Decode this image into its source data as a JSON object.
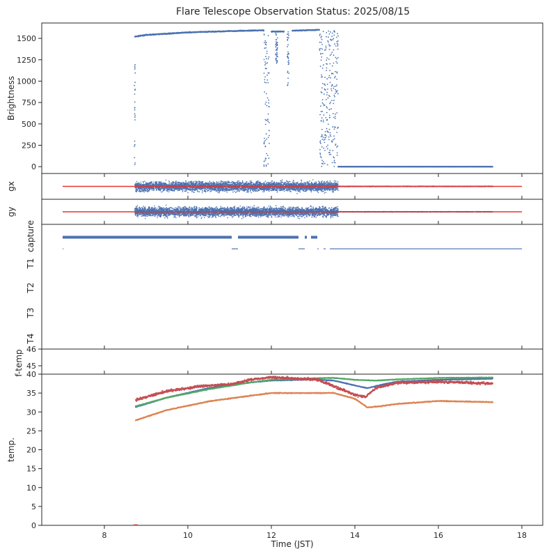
{
  "title": "Flare Telescope Observation Status: 2025/08/15",
  "colors": {
    "blue": "#4c72b0",
    "orange": "#dd8452",
    "green": "#55a868",
    "red": "#c44e52",
    "refline": "#e8322b"
  },
  "chart_data": [
    {
      "id": "brightness",
      "type": "scatter",
      "ylabel": "Brightness",
      "xlim": [
        6.5,
        18.5
      ],
      "ylim": [
        -80,
        1680
      ],
      "yticks": [
        "0",
        "250",
        "500",
        "750",
        "1000",
        "1250",
        "1500"
      ],
      "series": [
        {
          "name": "brightness",
          "color": "blue",
          "segments": [
            {
              "x0": 8.73,
              "x1": 9.0,
              "y0": 1520,
              "y1": 1540
            },
            {
              "x0": 9.0,
              "x1": 10.0,
              "y0": 1540,
              "y1": 1570
            },
            {
              "x0": 10.0,
              "x1": 11.0,
              "y0": 1570,
              "y1": 1585
            },
            {
              "x0": 11.0,
              "x1": 11.82,
              "y0": 1585,
              "y1": 1595
            },
            {
              "x0": 12.0,
              "x1": 12.3,
              "y0": 1580,
              "y1": 1580
            },
            {
              "x0": 12.5,
              "x1": 13.15,
              "y0": 1590,
              "y1": 1600
            },
            {
              "x0": 13.6,
              "x1": 17.3,
              "y0": 0,
              "y1": 0
            }
          ],
          "scatter_regions": [
            {
              "x0": 8.72,
              "x1": 8.74,
              "y0": 0,
              "y1": 1260
            },
            {
              "x0": 11.82,
              "x1": 11.95,
              "y0": 0,
              "y1": 1600
            },
            {
              "x0": 12.1,
              "x1": 12.15,
              "y0": 1200,
              "y1": 1580
            },
            {
              "x0": 12.38,
              "x1": 12.42,
              "y0": 950,
              "y1": 1580
            },
            {
              "x0": 13.15,
              "x1": 13.35,
              "y0": 0,
              "y1": 1600
            },
            {
              "x0": 13.35,
              "x1": 13.6,
              "y0": 0,
              "y1": 1600
            }
          ]
        }
      ]
    },
    {
      "id": "gx",
      "type": "scatter",
      "ylabel": "gx",
      "xlim": [
        6.5,
        18.5
      ],
      "ylim": [
        -1,
        1
      ],
      "series": [
        {
          "name": "gx",
          "color": "blue",
          "noise": [
            {
              "x0": 8.73,
              "x1": 13.6,
              "amp": 0.8
            },
            {
              "x0": 13.6,
              "x1": 17.3,
              "amp": 0.05
            }
          ]
        }
      ],
      "refline": {
        "x0": 7.0,
        "x1": 18.0,
        "y": 0
      }
    },
    {
      "id": "gy",
      "type": "scatter",
      "ylabel": "gy",
      "xlim": [
        6.5,
        18.5
      ],
      "ylim": [
        -1,
        1
      ],
      "series": [
        {
          "name": "gy",
          "color": "blue",
          "noise": [
            {
              "x0": 8.73,
              "x1": 13.6,
              "amp": 0.8
            },
            {
              "x0": 13.6,
              "x1": 17.3,
              "amp": 0.05
            }
          ]
        }
      ],
      "refline": {
        "x0": 7.0,
        "x1": 18.0,
        "y": 0
      }
    },
    {
      "id": "status",
      "type": "scatter",
      "xlim": [
        6.5,
        18.5
      ],
      "ylabels": [
        "capture",
        "T1",
        "T2",
        "T3",
        "T4"
      ],
      "capture_on": [
        [
          7.0,
          11.05
        ],
        [
          11.2,
          12.65
        ],
        [
          12.8,
          12.85
        ],
        [
          12.95,
          13.1
        ]
      ],
      "capture_off": [
        [
          7.0,
          7.02
        ],
        [
          11.05,
          11.2
        ],
        [
          12.65,
          12.8
        ],
        [
          13.1,
          13.13
        ],
        [
          13.25,
          13.3
        ],
        [
          13.4,
          18.0
        ]
      ]
    },
    {
      "id": "ftemp",
      "type": "scatter",
      "ylabel": "f-temp",
      "xlim": [
        6.5,
        18.5
      ],
      "ylim": [
        44.5,
        46
      ],
      "yticks": [
        "45",
        "46"
      ],
      "series": []
    },
    {
      "id": "temp",
      "type": "scatter",
      "ylabel": "temp.",
      "xlabel": "Time (JST)",
      "xlim": [
        6.5,
        18.5
      ],
      "ylim": [
        0,
        40
      ],
      "yticks": [
        "0",
        "5",
        "10",
        "15",
        "20",
        "25",
        "30",
        "35",
        "40"
      ],
      "xticks": [
        "8",
        "10",
        "12",
        "14",
        "16",
        "18"
      ],
      "series": [
        {
          "name": "orange",
          "color": "orange",
          "x": [
            8.75,
            9.5,
            10.5,
            11.5,
            12.0,
            12.5,
            13.5,
            14.0,
            14.3,
            14.6,
            15.0,
            16.0,
            17.3
          ],
          "y": [
            27.8,
            30.5,
            32.8,
            34.3,
            35.0,
            35.0,
            35.0,
            33.5,
            31.2,
            31.5,
            32.1,
            32.9,
            32.6
          ],
          "noise": 0.2
        },
        {
          "name": "blue",
          "color": "blue",
          "x": [
            8.75,
            9.5,
            10.5,
            11.5,
            12.0,
            13.0,
            13.5,
            14.0,
            14.3,
            14.6,
            15.0,
            16.0,
            17.3
          ],
          "y": [
            31.3,
            33.8,
            36.3,
            37.8,
            38.3,
            38.6,
            38.3,
            37.0,
            36.3,
            37.1,
            38.0,
            38.5,
            38.8
          ],
          "noise": 0.15
        },
        {
          "name": "green",
          "color": "green",
          "x": [
            8.75,
            9.5,
            10.5,
            11.5,
            12.0,
            13.0,
            13.5,
            14.0,
            14.5,
            15.0,
            16.0,
            17.3
          ],
          "y": [
            31.5,
            33.8,
            36.0,
            37.8,
            38.5,
            38.9,
            39.0,
            38.5,
            38.3,
            38.6,
            39.0,
            39.1
          ],
          "noise": 0.15
        },
        {
          "name": "red",
          "color": "red",
          "x": [
            8.75,
            9.5,
            10.3,
            11.0,
            11.5,
            12.0,
            12.6,
            13.1,
            13.6,
            14.0,
            14.25,
            14.5,
            15.0,
            16.0,
            17.3
          ],
          "y": [
            33.2,
            35.5,
            36.8,
            37.3,
            38.5,
            39.2,
            38.8,
            38.6,
            36.3,
            34.5,
            33.9,
            36.3,
            37.7,
            38.0,
            37.5
          ],
          "noise": 0.55
        },
        {
          "name": "red-marker",
          "color": "red",
          "x": [
            8.75
          ],
          "y": [
            0
          ],
          "noise": 0
        }
      ]
    }
  ]
}
